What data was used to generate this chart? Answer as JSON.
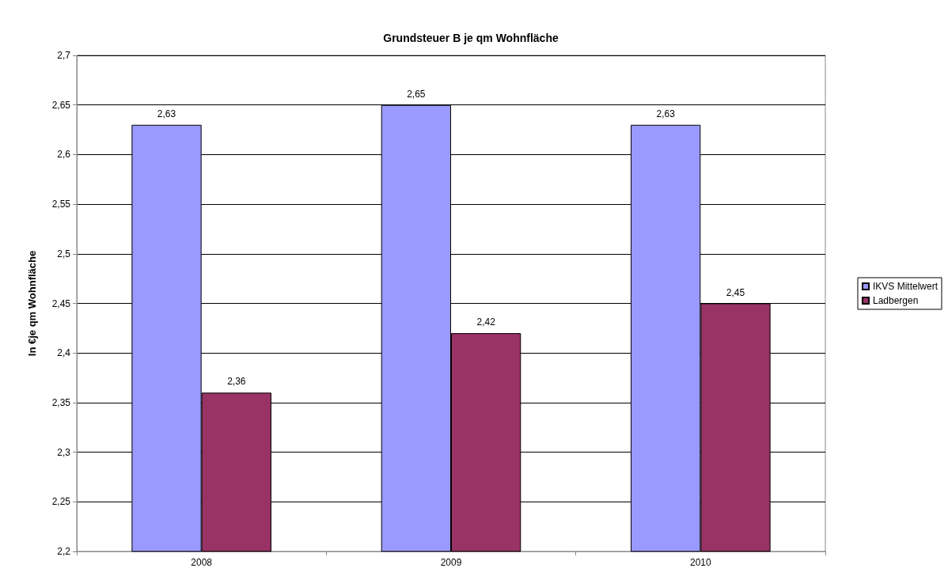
{
  "chart_data": {
    "type": "bar",
    "title": "Grundsteuer B je qm Wohnfläche",
    "ylabel": "In €je qm Wohnfläche",
    "categories": [
      "2008",
      "2009",
      "2010"
    ],
    "series": [
      {
        "name": "IKVS Mittelwert",
        "color": "#9999ff",
        "values": [
          2.63,
          2.65,
          2.63
        ],
        "value_labels": [
          "2,63",
          "2,65",
          "2,63"
        ]
      },
      {
        "name": "Ladbergen",
        "color": "#993366",
        "values": [
          2.36,
          2.42,
          2.45
        ],
        "value_labels": [
          "2,36",
          "2,42",
          "2,45"
        ]
      }
    ],
    "ylim": [
      2.2,
      2.7
    ],
    "yticks": [
      {
        "value": 2.2,
        "label": "2,2"
      },
      {
        "value": 2.25,
        "label": "2,25"
      },
      {
        "value": 2.3,
        "label": "2,3"
      },
      {
        "value": 2.35,
        "label": "2,35"
      },
      {
        "value": 2.4,
        "label": "2,4"
      },
      {
        "value": 2.45,
        "label": "2,45"
      },
      {
        "value": 2.5,
        "label": "2,5"
      },
      {
        "value": 2.55,
        "label": "2,55"
      },
      {
        "value": 2.6,
        "label": "2,6"
      },
      {
        "value": 2.65,
        "label": "2,65"
      },
      {
        "value": 2.7,
        "label": "2,7"
      }
    ],
    "grid": "y",
    "legend": "right"
  }
}
